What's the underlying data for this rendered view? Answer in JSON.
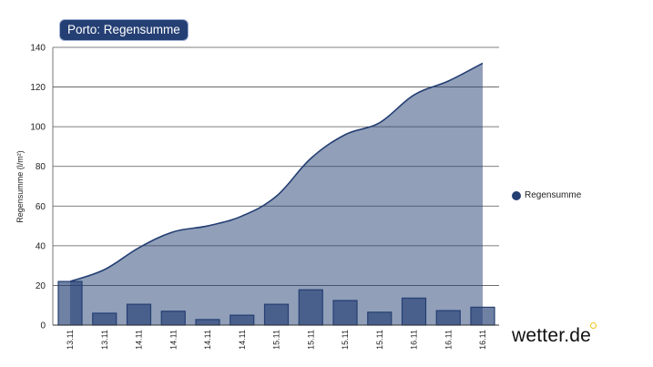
{
  "chart_data": {
    "type": "bar+area",
    "title": "Porto: Regensumme",
    "ylabel": "Regensumme (l/m²)",
    "xlabel": "",
    "ylim": [
      0,
      140
    ],
    "yticks": [
      0,
      20,
      40,
      60,
      80,
      100,
      120,
      140
    ],
    "grid": true,
    "legend_position": "right",
    "categories": [
      "13.11",
      "13.11",
      "14.11",
      "14.11",
      "14.11",
      "14.11",
      "15.11",
      "15.11",
      "15.11",
      "15.11",
      "16.11",
      "16.11",
      "16.11"
    ],
    "series": [
      {
        "name": "Regensumme",
        "type": "area",
        "color": "#243f73",
        "values": [
          22,
          28,
          39,
          47,
          50,
          55,
          65,
          84,
          96,
          102,
          116,
          123,
          132
        ]
      },
      {
        "type": "bar",
        "color": "#243f73",
        "values": [
          22,
          6,
          10.5,
          7,
          2.8,
          5,
          10.5,
          17.8,
          12.4,
          6.5,
          13.6,
          7.3,
          9
        ]
      }
    ]
  },
  "legend": {
    "label": "Regensumme",
    "color": "#243f73"
  },
  "brand": {
    "text": "wetter.de",
    "accent_color": "#f0c419"
  }
}
